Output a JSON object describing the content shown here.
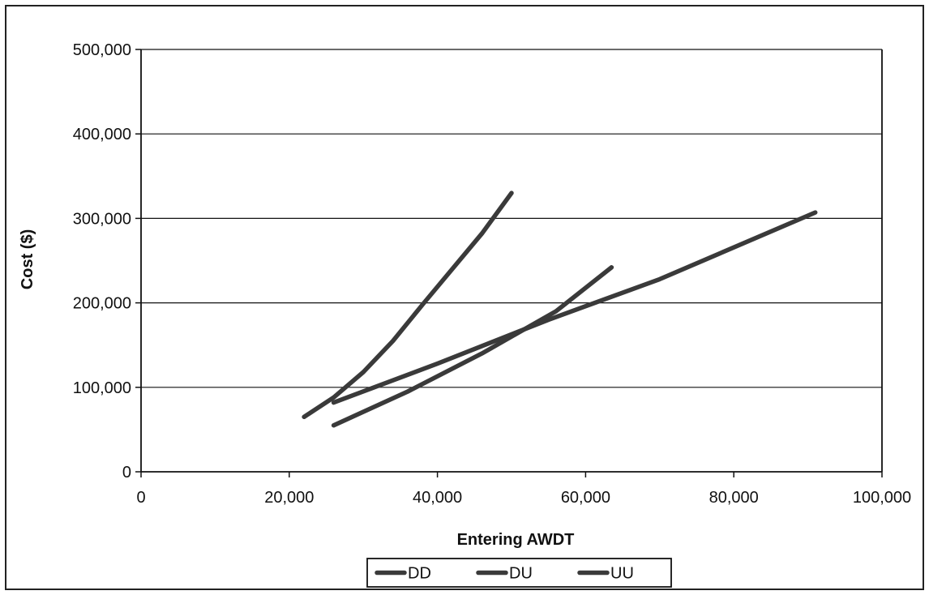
{
  "chart_data": {
    "type": "line",
    "xlabel": "Entering AWDT",
    "ylabel": "Cost ($)",
    "xlim": [
      0,
      100000
    ],
    "ylim": [
      0,
      500000
    ],
    "x_ticks": [
      0,
      20000,
      40000,
      60000,
      80000,
      100000
    ],
    "x_tick_labels": [
      "0",
      "20,000",
      "40,000",
      "60,000",
      "80,000",
      "100,000"
    ],
    "y_ticks": [
      0,
      100000,
      200000,
      300000,
      400000,
      500000
    ],
    "y_tick_labels": [
      "0",
      "100,000",
      "200,000",
      "300,000",
      "400,000",
      "500,000"
    ],
    "grid": "horizontal",
    "legend_position": "bottom",
    "series": [
      {
        "name": "DD",
        "color": "#3a3a3a",
        "x": [
          22000,
          26000,
          30000,
          34000,
          38000,
          42000,
          46000,
          50000
        ],
        "y": [
          65000,
          88000,
          118000,
          155000,
          198000,
          240000,
          282000,
          330000
        ]
      },
      {
        "name": "DU",
        "color": "#3a3a3a",
        "x": [
          26000,
          36000,
          46000,
          56000,
          63500
        ],
        "y": [
          55000,
          95000,
          140000,
          190000,
          242000
        ]
      },
      {
        "name": "UU",
        "color": "#3a3a3a",
        "x": [
          26000,
          40000,
          55000,
          70000,
          91000
        ],
        "y": [
          82000,
          128000,
          180000,
          228000,
          307000
        ]
      }
    ]
  }
}
